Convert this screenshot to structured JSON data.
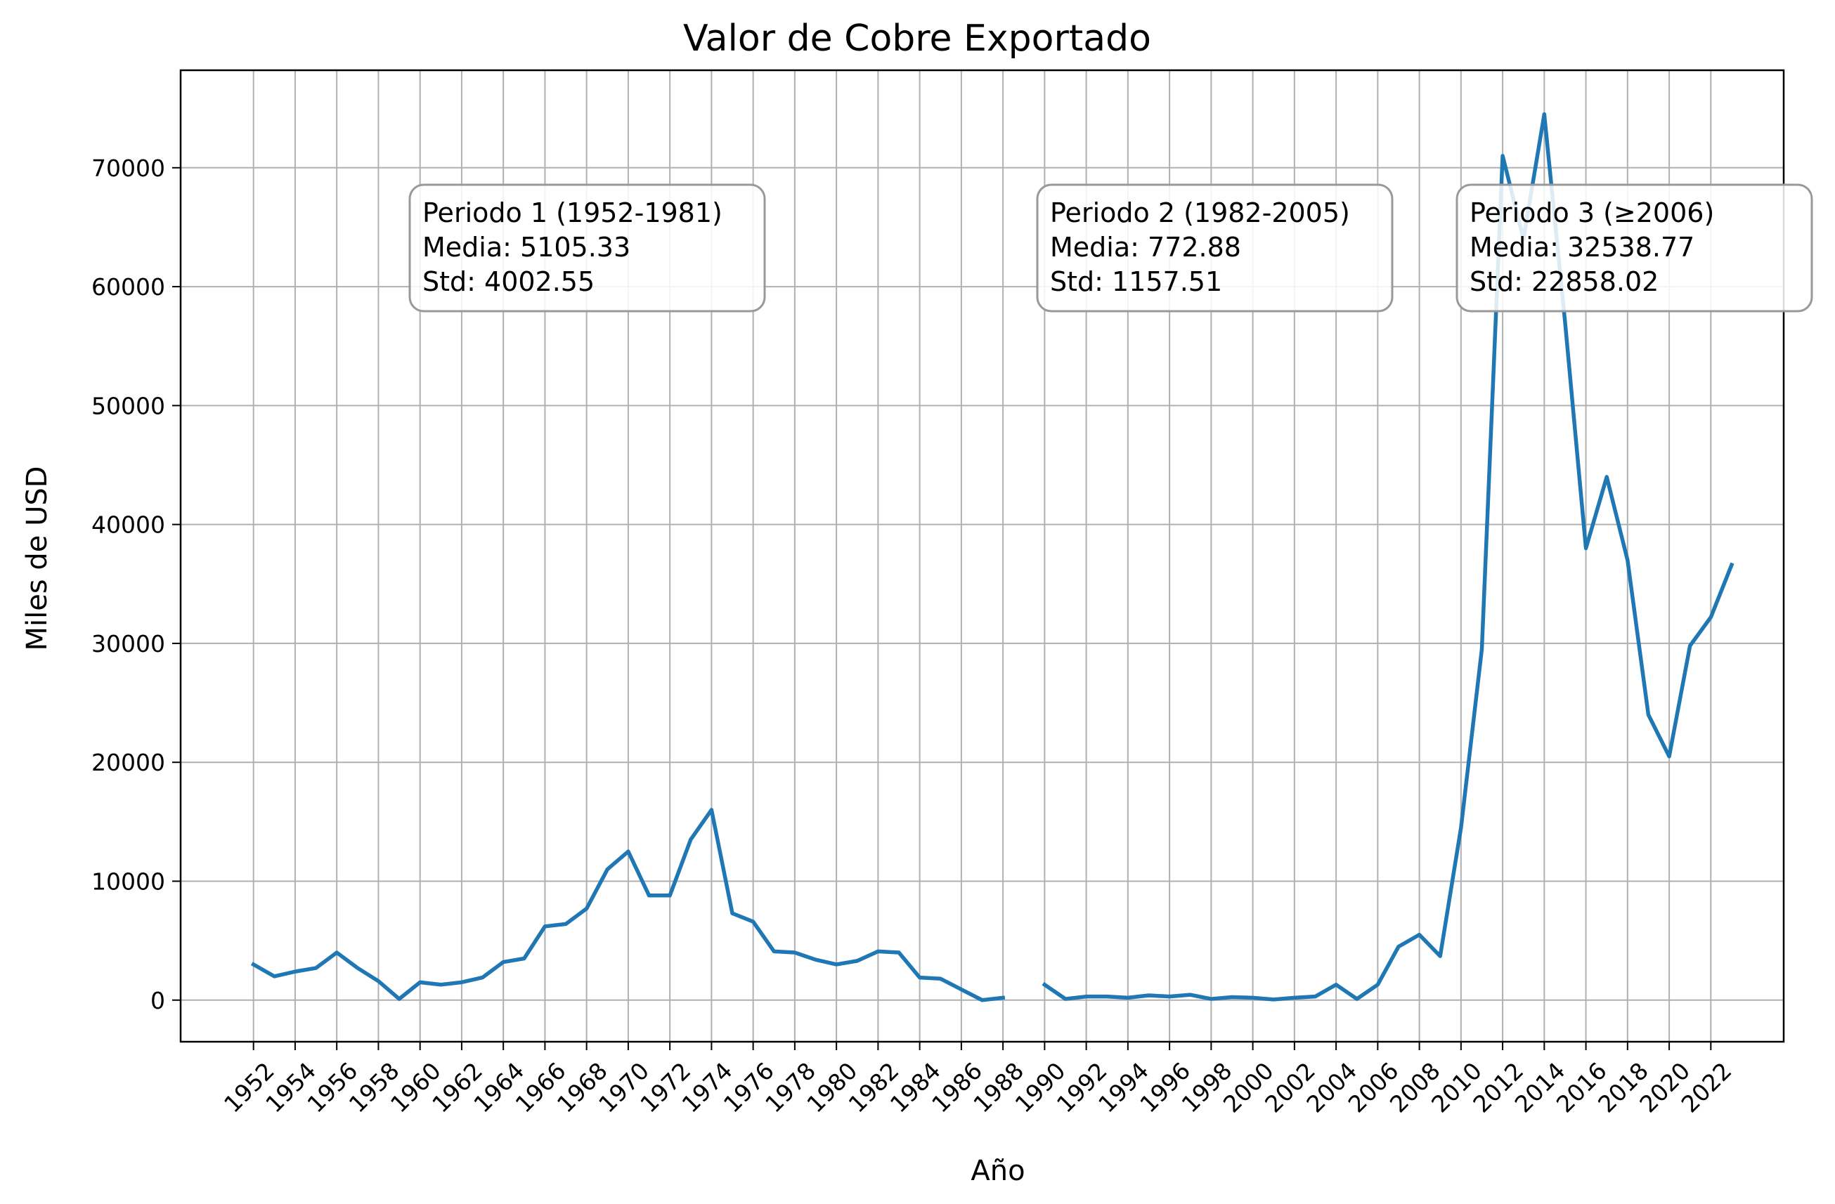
{
  "chart_data": {
    "type": "line",
    "title": "Valor de Cobre Exportado",
    "xlabel": "Año",
    "ylabel": "Miles de USD",
    "xlim": [
      1948.5,
      2025.5
    ],
    "ylim": [
      -3500,
      78200
    ],
    "grid": true,
    "line_color": "#1f77b4",
    "x_ticks": [
      "1952",
      "1954",
      "1956",
      "1958",
      "1960",
      "1962",
      "1964",
      "1966",
      "1968",
      "1970",
      "1972",
      "1974",
      "1976",
      "1978",
      "1980",
      "1982",
      "1984",
      "1986",
      "1988",
      "1990",
      "1992",
      "1994",
      "1996",
      "1998",
      "2000",
      "2002",
      "2004",
      "2006",
      "2008",
      "2010",
      "2012",
      "2014",
      "2016",
      "2018",
      "2020",
      "2022"
    ],
    "y_ticks": [
      "0",
      "10000",
      "20000",
      "30000",
      "40000",
      "50000",
      "60000",
      "70000"
    ],
    "series": [
      {
        "x": [
          1952,
          1953,
          1954,
          1955,
          1956,
          1957,
          1958,
          1959,
          1960,
          1961,
          1962,
          1963,
          1964,
          1965,
          1966,
          1967,
          1968,
          1969,
          1970,
          1971,
          1972,
          1973,
          1974,
          1975,
          1976,
          1977,
          1978,
          1979,
          1980,
          1981,
          1982,
          1983,
          1984,
          1985,
          1986,
          1987,
          1988,
          1989,
          1990,
          1991,
          1992,
          1993,
          1994,
          1995,
          1996,
          1997,
          1998,
          1999,
          2000,
          2001,
          2002,
          2003,
          2004,
          2005,
          2006,
          2007,
          2008,
          2009,
          2010,
          2011,
          2012,
          2013,
          2014,
          2015,
          2016,
          2017,
          2018,
          2019,
          2020,
          2021,
          2022,
          2023
        ],
        "y": [
          3000,
          2000,
          2400,
          2700,
          4000,
          2700,
          1600,
          100,
          1500,
          1300,
          1500,
          1900,
          3200,
          3500,
          6200,
          6400,
          7700,
          11000,
          12500,
          8800,
          8800,
          13500,
          16000,
          7300,
          6600,
          4100,
          4000,
          3400,
          3000,
          3300,
          4100,
          4000,
          1900,
          1800,
          900,
          0,
          200,
          null,
          1300,
          100,
          300,
          300,
          200,
          400,
          300,
          450,
          100,
          250,
          200,
          50,
          200,
          300,
          1300,
          100,
          1300,
          4500,
          5500,
          3700,
          14500,
          29500,
          71000,
          64000,
          74500,
          57000,
          38000,
          44000,
          37000,
          24000,
          20500,
          29800,
          32200,
          36600
        ]
      }
    ],
    "annotations": [
      {
        "lines": [
          "Periodo 1 (1952-1981)",
          "Media: 5105.33",
          "Std: 4002.55"
        ]
      },
      {
        "lines": [
          "Periodo 2 (1982-2005)",
          "Media: 772.88",
          "Std: 1157.51"
        ]
      },
      {
        "lines": [
          "Periodo 3 (≥2006)",
          "Media: 32538.77",
          "Std: 22858.02"
        ]
      }
    ]
  }
}
